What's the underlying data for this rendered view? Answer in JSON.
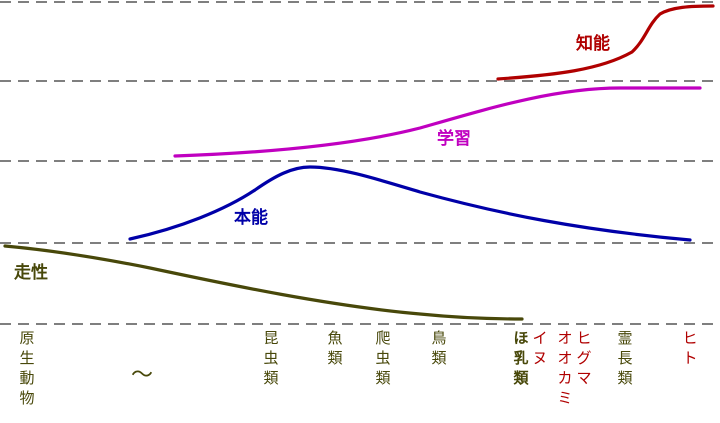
{
  "colors": {
    "chino": "#b00000",
    "gakushu": "#c000c0",
    "honno": "#0000a8",
    "sosei": "#48480a",
    "taxon_default": "#48480a",
    "taxon_highlight": "#b00000",
    "dash": "#555555"
  },
  "labels": {
    "chino": "知能",
    "gakushu": "学習",
    "honno": "本能",
    "sosei": "走性"
  },
  "tilde": "〜",
  "taxa": [
    {
      "text": "原生動物",
      "highlight": false
    },
    {
      "text": "昆虫類",
      "highlight": false
    },
    {
      "text": "魚類",
      "highlight": false
    },
    {
      "text": "爬虫類",
      "highlight": false
    },
    {
      "text": "鳥類",
      "highlight": false
    },
    {
      "text": "ほ乳類",
      "highlight": false
    },
    {
      "text": "イヌ",
      "highlight": true
    },
    {
      "text": "オオカミ",
      "highlight": true
    },
    {
      "text": "ヒグマ",
      "highlight": true
    },
    {
      "text": "霊長類",
      "highlight": false
    },
    {
      "text": "ヒト",
      "highlight": true
    }
  ]
}
